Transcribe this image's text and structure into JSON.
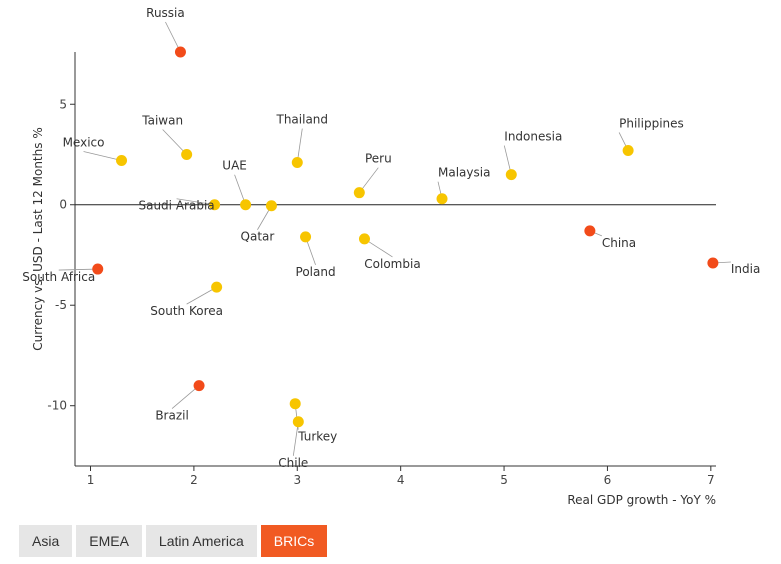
{
  "chart_data": {
    "type": "scatter",
    "title": "",
    "xlabel": "Real GDP growth - YoY %",
    "ylabel": "Currency vs. USD - Last 12 Months %",
    "xlim": [
      0.85,
      7.05
    ],
    "ylim": [
      -13,
      7.6
    ],
    "x_ticks": [
      1,
      2,
      3,
      4,
      5,
      6,
      7
    ],
    "y_ticks": [
      -10,
      -5,
      0,
      5
    ],
    "grid": false,
    "colors": {
      "highlight": "#f24b1a",
      "other": "#f7c500"
    },
    "points": [
      {
        "label": "Russia",
        "x": 1.87,
        "y": 7.6,
        "highlight": true
      },
      {
        "label": "Mexico",
        "x": 1.3,
        "y": 2.2,
        "highlight": false
      },
      {
        "label": "Taiwan",
        "x": 1.93,
        "y": 2.5,
        "highlight": false
      },
      {
        "label": "Thailand",
        "x": 3.0,
        "y": 2.1,
        "highlight": false
      },
      {
        "label": "Peru",
        "x": 3.6,
        "y": 0.6,
        "highlight": false
      },
      {
        "label": "Malaysia",
        "x": 4.4,
        "y": 0.3,
        "highlight": false
      },
      {
        "label": "Indonesia",
        "x": 5.07,
        "y": 1.5,
        "highlight": false
      },
      {
        "label": "Philippines",
        "x": 6.2,
        "y": 2.7,
        "highlight": false
      },
      {
        "label": "Saudi Arabia",
        "x": 2.2,
        "y": 0.0,
        "highlight": false
      },
      {
        "label": "UAE",
        "x": 2.5,
        "y": 0.0,
        "highlight": false
      },
      {
        "label": "Qatar",
        "x": 2.75,
        "y": -0.05,
        "highlight": false
      },
      {
        "label": "Poland",
        "x": 3.08,
        "y": -1.6,
        "highlight": false
      },
      {
        "label": "Colombia",
        "x": 3.65,
        "y": -1.7,
        "highlight": false
      },
      {
        "label": "China",
        "x": 5.83,
        "y": -1.3,
        "highlight": true
      },
      {
        "label": "India",
        "x": 7.02,
        "y": -2.9,
        "highlight": true
      },
      {
        "label": "South Africa",
        "x": 1.07,
        "y": -3.2,
        "highlight": true
      },
      {
        "label": "South Korea",
        "x": 2.22,
        "y": -4.1,
        "highlight": false
      },
      {
        "label": "Brazil",
        "x": 2.05,
        "y": -9.0,
        "highlight": true
      },
      {
        "label": "Turkey",
        "x": 2.98,
        "y": -9.9,
        "highlight": false
      },
      {
        "label": "Chile",
        "x": 3.01,
        "y": -10.8,
        "highlight": false
      }
    ]
  },
  "tabs": [
    {
      "label": "Asia",
      "active": false
    },
    {
      "label": "EMEA",
      "active": false
    },
    {
      "label": "Latin America",
      "active": false
    },
    {
      "label": "BRICs",
      "active": true
    }
  ]
}
